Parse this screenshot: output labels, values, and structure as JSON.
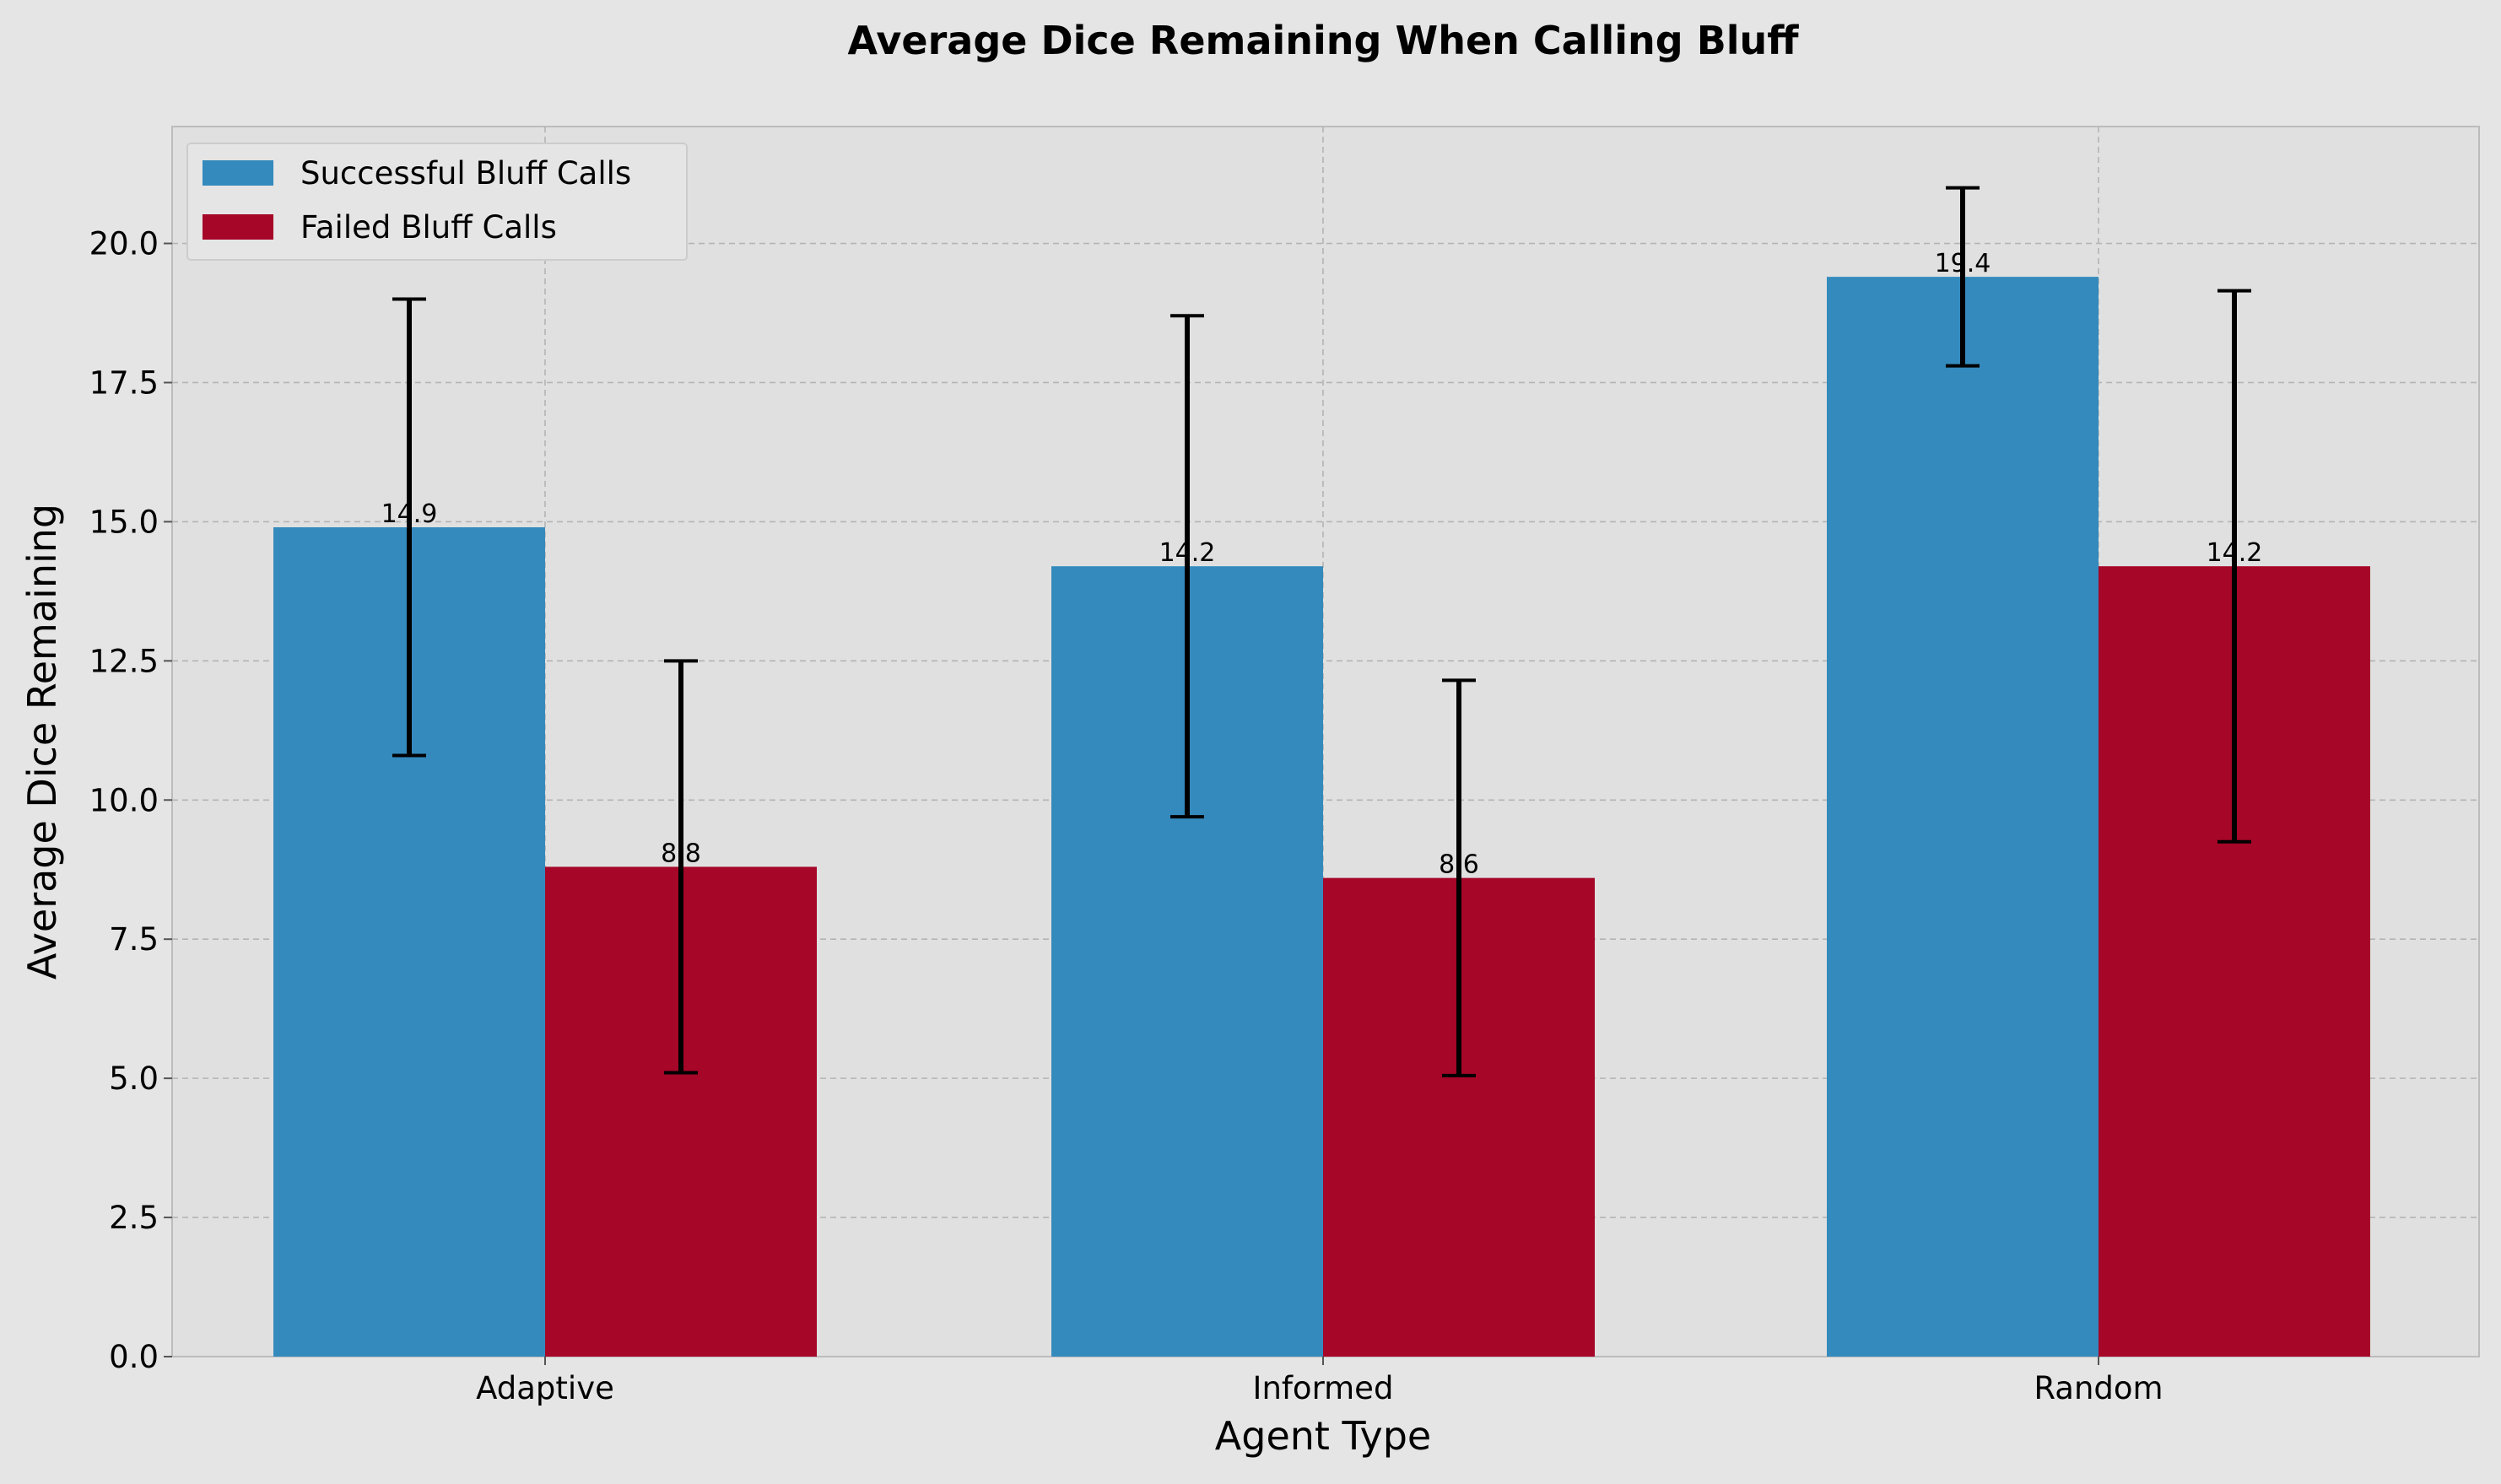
{
  "chart_data": {
    "type": "bar",
    "title": "Average Dice Remaining When Calling Bluff",
    "xlabel": "Agent Type",
    "ylabel": "Average Dice Remaining",
    "categories": [
      "Adaptive",
      "Informed",
      "Random"
    ],
    "series": [
      {
        "name": "Successful Bluff Calls",
        "color": "#348abd",
        "values": [
          14.9,
          14.2,
          19.4
        ],
        "labels": [
          "14.9",
          "14.2",
          "19.4"
        ],
        "error": [
          4.1,
          4.5,
          1.6
        ]
      },
      {
        "name": "Failed Bluff Calls",
        "color": "#a60628",
        "values": [
          8.8,
          8.6,
          14.2
        ],
        "labels": [
          "8.8",
          "8.6",
          "14.2"
        ],
        "error": [
          3.7,
          3.55,
          4.95
        ]
      }
    ],
    "ylim": [
      0,
      22.1
    ],
    "yticks": [
      "0.0",
      "2.5",
      "5.0",
      "7.5",
      "10.0",
      "12.5",
      "15.0",
      "17.5",
      "20.0"
    ],
    "grid": true,
    "legend": "top-left"
  }
}
